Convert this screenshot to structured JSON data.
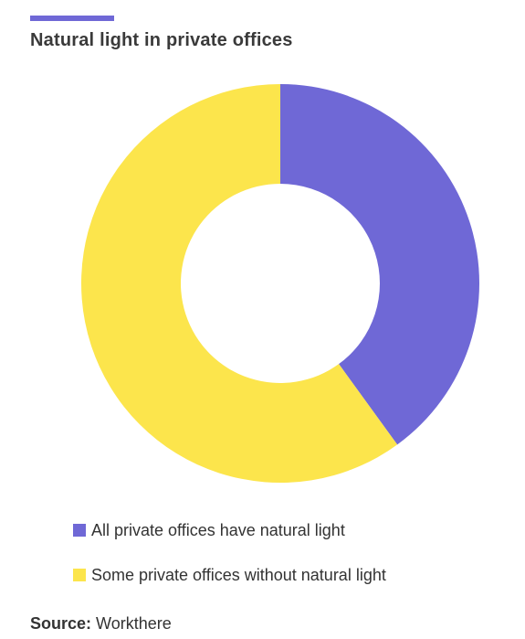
{
  "colors": {
    "accent": "#6f68d6",
    "series_1": "#6f68d6",
    "series_2": "#fce54c"
  },
  "chart_data": {
    "type": "pie",
    "title": "Natural light in private offices",
    "subtype": "donut",
    "slices": [
      {
        "label": "All private offices have natural light",
        "value": 40,
        "color": "#6f68d6"
      },
      {
        "label": "Some private offices without natural light",
        "value": 60,
        "color": "#fce54c"
      }
    ],
    "start_angle": "top",
    "direction": "clockwise",
    "legend_position": "bottom-left"
  },
  "source": {
    "label": "Source:",
    "text": "Workthere"
  }
}
